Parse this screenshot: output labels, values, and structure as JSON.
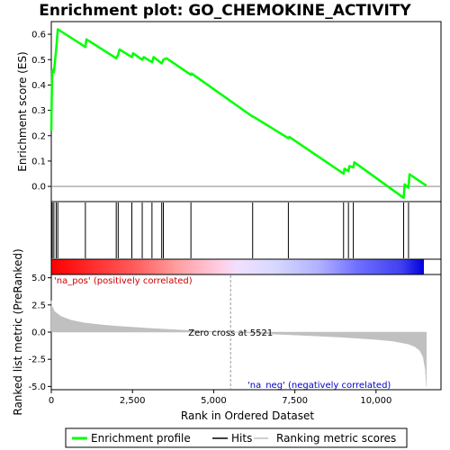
{
  "chart_data": {
    "type": "line",
    "title": "Enrichment plot: GO_CHEMOKINE_ACTIVITY",
    "top_panel": {
      "ylabel": "Enrichment score (ES)",
      "ylim": [
        -0.06,
        0.65
      ],
      "yticks": [
        "0.0",
        "0.1",
        "0.2",
        "0.3",
        "0.4",
        "0.5",
        "0.6"
      ],
      "ytick_values": [
        0.0,
        0.1,
        0.2,
        0.3,
        0.4,
        0.5,
        0.6
      ],
      "series": [
        {
          "name": "Enrichment profile",
          "color": "#00ff00",
          "x": [
            0,
            10,
            30,
            80,
            150,
            200,
            1050,
            1080,
            2000,
            2060,
            2100,
            2480,
            2520,
            2800,
            2850,
            3100,
            3150,
            3400,
            3450,
            3550,
            4300,
            4320,
            6200,
            6220,
            7300,
            7330,
            9000,
            9030,
            9150,
            9180,
            9300,
            9330,
            10850,
            10880,
            11000,
            11030,
            11550
          ],
          "y": [
            0.22,
            0.33,
            0.46,
            0.45,
            0.54,
            0.62,
            0.55,
            0.58,
            0.505,
            0.52,
            0.54,
            0.51,
            0.525,
            0.5,
            0.51,
            0.49,
            0.51,
            0.485,
            0.5,
            0.505,
            0.44,
            0.445,
            0.275,
            0.275,
            0.19,
            0.195,
            0.05,
            0.07,
            0.06,
            0.08,
            0.075,
            0.095,
            -0.045,
            0.008,
            -0.005,
            0.048,
            0.003
          ]
        }
      ],
      "baseline": 0.0
    },
    "hits": {
      "name": "Hits",
      "positions": [
        10,
        30,
        80,
        150,
        200,
        1050,
        2000,
        2060,
        2480,
        2800,
        3100,
        3400,
        3450,
        4300,
        6200,
        7300,
        9000,
        9150,
        9300,
        10850,
        11000
      ]
    },
    "bottom_panel": {
      "ylabel": "Ranked list metric (PreRanked)",
      "xlabel": "Rank in Ordered Dataset",
      "ylim": [
        -5.3,
        5.3
      ],
      "yticks": [
        "5.0",
        "2.5",
        "0.0",
        "-2.5",
        "-5.0"
      ],
      "ytick_values": [
        5.0,
        2.5,
        0.0,
        -2.5,
        -5.0
      ],
      "xticks": [
        "0",
        "2,500",
        "5,000",
        "7,500",
        "10,000"
      ],
      "xtick_values": [
        0,
        2500,
        5000,
        7500,
        10000
      ],
      "xlim": [
        0,
        12000
      ],
      "ranking_metric_scores": {
        "name": "Ranking metric scores",
        "color": "#c0c0c0",
        "x": [
          0,
          20,
          100,
          300,
          600,
          1000,
          1500,
          2000,
          3000,
          4000,
          5000,
          5521,
          6000,
          7000,
          8000,
          9000,
          10000,
          10500,
          11000,
          11200,
          11350,
          11450,
          11520,
          11550
        ],
        "y": [
          2.9,
          2.4,
          1.9,
          1.45,
          1.1,
          0.85,
          0.68,
          0.55,
          0.35,
          0.18,
          0.06,
          0.0,
          -0.07,
          -0.2,
          -0.33,
          -0.48,
          -0.68,
          -0.82,
          -1.1,
          -1.35,
          -1.7,
          -2.3,
          -3.5,
          -5.0
        ]
      },
      "zero_cross_label": "Zero cross at 5521",
      "zero_cross": 5521,
      "pos_label": "'na_pos' (positively correlated)",
      "neg_label": "'na_neg' (negatively correlated)",
      "pos_color": "#ff0000",
      "neg_color": "#0000ff"
    },
    "n_ranks": 11550,
    "legend": {
      "placement": "bottom",
      "items": [
        "Enrichment profile",
        "Hits",
        "Ranking metric scores"
      ]
    }
  }
}
